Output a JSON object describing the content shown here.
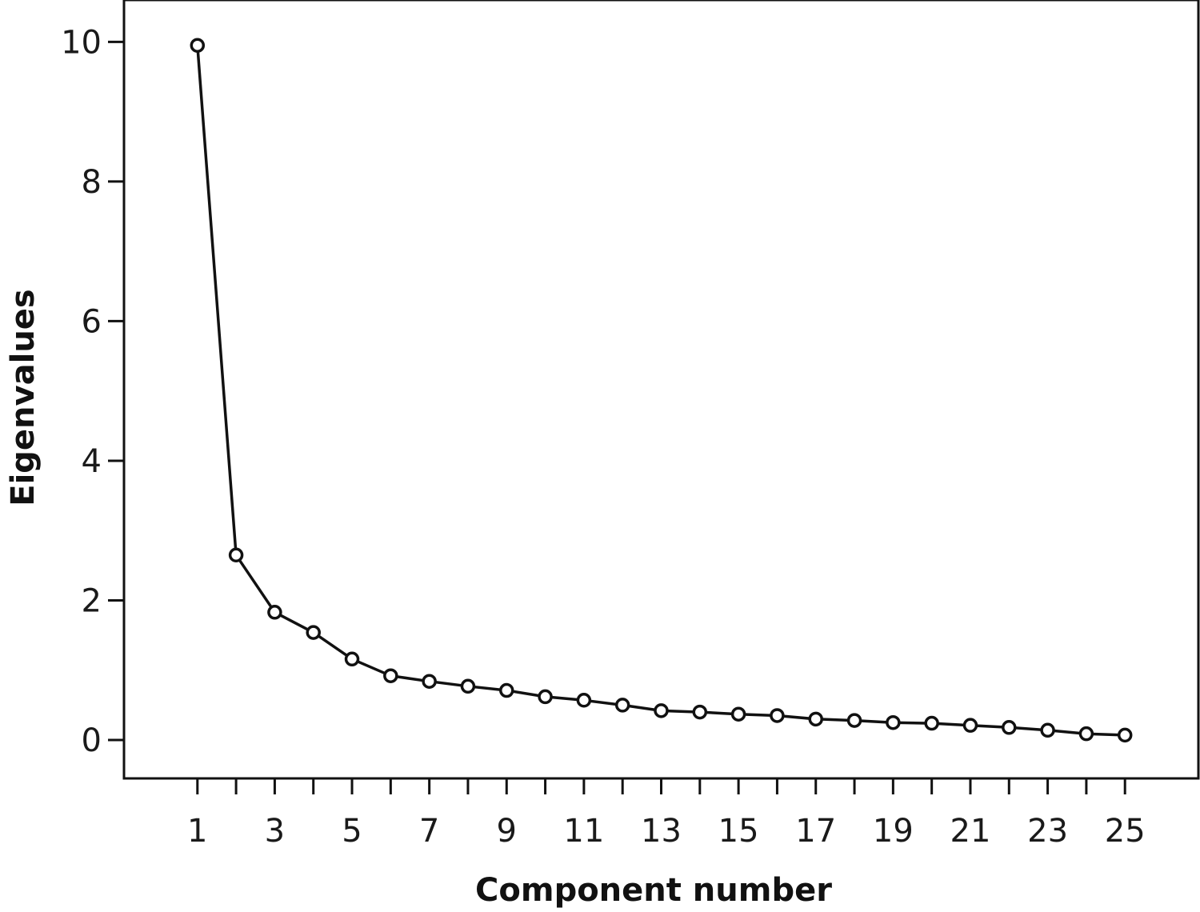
{
  "chart_data": {
    "type": "line",
    "xlabel": "Component number",
    "ylabel": "Eigenvalues",
    "xlim": [
      -0.9,
      26.9
    ],
    "ylim": [
      -0.55,
      10.6
    ],
    "x_ticks": [
      1,
      3,
      5,
      7,
      9,
      11,
      13,
      15,
      17,
      19,
      21,
      23,
      25
    ],
    "x_minor_ticks": [
      2,
      4,
      6,
      8,
      10,
      12,
      14,
      16,
      18,
      20,
      22,
      24
    ],
    "y_ticks": [
      0,
      2,
      4,
      6,
      8,
      10
    ],
    "grid": false,
    "marker": "open-circle",
    "line_color": "#111111",
    "series": [
      {
        "x": [
          1,
          2,
          3,
          4,
          5,
          6,
          7,
          8,
          9,
          10,
          11,
          12,
          13,
          14,
          15,
          16,
          17,
          18,
          19,
          20,
          21,
          22,
          23,
          24,
          25
        ],
        "values": [
          9.95,
          2.65,
          1.83,
          1.54,
          1.16,
          0.92,
          0.84,
          0.77,
          0.71,
          0.62,
          0.57,
          0.5,
          0.42,
          0.4,
          0.37,
          0.35,
          0.3,
          0.28,
          0.25,
          0.24,
          0.21,
          0.18,
          0.14,
          0.09,
          0.07
        ]
      }
    ]
  }
}
